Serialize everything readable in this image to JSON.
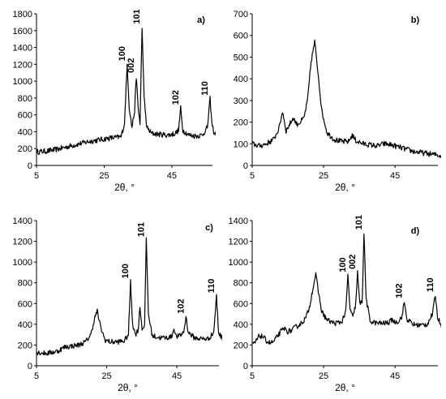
{
  "chart_data": [
    {
      "type": "line",
      "panel": "a)",
      "xlabel": "2θ, °",
      "ylabel": "",
      "xlim": [
        5,
        57
      ],
      "ylim": [
        0,
        1800
      ],
      "xticks": [
        5,
        25,
        45
      ],
      "yticks": [
        0,
        200,
        400,
        600,
        800,
        1000,
        1200,
        1400,
        1600,
        1800
      ],
      "series": [
        {
          "points": [
            [
              5,
              160
            ],
            [
              8,
              170
            ],
            [
              11,
              190
            ],
            [
              14,
              220
            ],
            [
              17,
              250
            ],
            [
              20,
              280
            ],
            [
              23,
              300
            ],
            [
              26,
              320
            ],
            [
              28,
              330
            ],
            [
              30,
              340
            ],
            [
              31,
              500
            ],
            [
              31.8,
              1200
            ],
            [
              32.4,
              700
            ],
            [
              33.2,
              450
            ],
            [
              34,
              650
            ],
            [
              34.5,
              1060
            ],
            [
              35,
              700
            ],
            [
              35.6,
              500
            ],
            [
              36.2,
              1640
            ],
            [
              36.8,
              800
            ],
            [
              37.6,
              450
            ],
            [
              39,
              380
            ],
            [
              41,
              370
            ],
            [
              44,
              360
            ],
            [
              46,
              380
            ],
            [
              47,
              420
            ],
            [
              47.6,
              680
            ],
            [
              48.2,
              420
            ],
            [
              50,
              360
            ],
            [
              52,
              350
            ],
            [
              54,
              360
            ],
            [
              55.5,
              450
            ],
            [
              56.3,
              790
            ],
            [
              56.8,
              500
            ],
            [
              57.5,
              380
            ],
            [
              59,
              370
            ],
            [
              60,
              370
            ]
          ]
        }
      ],
      "annotations": [
        {
          "text": "100",
          "x": 31.8,
          "y": 1200
        },
        {
          "text": "002",
          "x": 34.5,
          "y": 1060
        },
        {
          "text": "101",
          "x": 36.2,
          "y": 1640
        },
        {
          "text": "102",
          "x": 47.6,
          "y": 680
        },
        {
          "text": "110",
          "x": 56.3,
          "y": 790
        }
      ]
    },
    {
      "type": "line",
      "panel": "b)",
      "xlabel": "2θ, °",
      "ylabel": "",
      "xlim": [
        5,
        57
      ],
      "ylim": [
        0,
        700
      ],
      "xticks": [
        5,
        25,
        45
      ],
      "yticks": [
        0,
        100,
        200,
        300,
        400,
        500,
        600,
        700
      ],
      "series": [
        {
          "points": [
            [
              5,
              100
            ],
            [
              7,
              90
            ],
            [
              9,
              100
            ],
            [
              11,
              120
            ],
            [
              12.5,
              170
            ],
            [
              13.5,
              250
            ],
            [
              14.5,
              160
            ],
            [
              15.5,
              190
            ],
            [
              16.5,
              220
            ],
            [
              17.5,
              190
            ],
            [
              18.5,
              200
            ],
            [
              19.5,
              220
            ],
            [
              20.5,
              300
            ],
            [
              21.5,
              480
            ],
            [
              22.5,
              570
            ],
            [
              23.5,
              420
            ],
            [
              24.5,
              250
            ],
            [
              26,
              150
            ],
            [
              28,
              120
            ],
            [
              30,
              110
            ],
            [
              32,
              110
            ],
            [
              33,
              140
            ],
            [
              34,
              115
            ],
            [
              36,
              100
            ],
            [
              38,
              95
            ],
            [
              40,
              90
            ],
            [
              42,
              100
            ],
            [
              44,
              95
            ],
            [
              46,
              85
            ],
            [
              48,
              75
            ],
            [
              50,
              65
            ],
            [
              52,
              60
            ],
            [
              54,
              55
            ],
            [
              56,
              50
            ],
            [
              58,
              45
            ],
            [
              60,
              40
            ]
          ]
        }
      ],
      "annotations": []
    },
    {
      "type": "line",
      "panel": "c)",
      "xlabel": "2θ, °",
      "ylabel": "",
      "xlim": [
        5,
        57
      ],
      "ylim": [
        0,
        1400
      ],
      "xticks": [
        5,
        25,
        45
      ],
      "yticks": [
        0,
        200,
        400,
        600,
        800,
        1000,
        1200,
        1400
      ],
      "series": [
        {
          "points": [
            [
              5,
              130
            ],
            [
              8,
              120
            ],
            [
              11,
              140
            ],
            [
              13,
              180
            ],
            [
              15,
              190
            ],
            [
              17,
              200
            ],
            [
              19,
              230
            ],
            [
              20.5,
              300
            ],
            [
              21.5,
              450
            ],
            [
              22.3,
              530
            ],
            [
              23.2,
              380
            ],
            [
              24.5,
              250
            ],
            [
              26,
              230
            ],
            [
              28,
              230
            ],
            [
              30,
              240
            ],
            [
              31.2,
              300
            ],
            [
              31.8,
              810
            ],
            [
              32.4,
              400
            ],
            [
              33.2,
              300
            ],
            [
              34,
              350
            ],
            [
              34.5,
              570
            ],
            [
              35.1,
              350
            ],
            [
              35.8,
              400
            ],
            [
              36.3,
              1210
            ],
            [
              36.9,
              500
            ],
            [
              38,
              290
            ],
            [
              40,
              270
            ],
            [
              42,
              270
            ],
            [
              43.5,
              280
            ],
            [
              44.2,
              360
            ],
            [
              44.8,
              280
            ],
            [
              46,
              290
            ],
            [
              47,
              330
            ],
            [
              47.6,
              470
            ],
            [
              48.3,
              320
            ],
            [
              50,
              270
            ],
            [
              52,
              260
            ],
            [
              54,
              260
            ],
            [
              55.5,
              320
            ],
            [
              56.3,
              670
            ],
            [
              56.9,
              320
            ],
            [
              58,
              260
            ],
            [
              60,
              260
            ]
          ]
        }
      ],
      "annotations": [
        {
          "text": "100",
          "x": 31.8,
          "y": 810
        },
        {
          "text": "101",
          "x": 36.3,
          "y": 1210
        },
        {
          "text": "102",
          "x": 47.6,
          "y": 470
        },
        {
          "text": "110",
          "x": 56.3,
          "y": 670
        }
      ]
    },
    {
      "type": "line",
      "panel": "d)",
      "xlabel": "2θ, °",
      "ylabel": "",
      "xlim": [
        5,
        57
      ],
      "ylim": [
        0,
        1400
      ],
      "xticks": [
        5,
        25,
        45
      ],
      "yticks": [
        0,
        200,
        400,
        600,
        800,
        1000,
        1200,
        1400
      ],
      "series": [
        {
          "points": [
            [
              4,
              220
            ],
            [
              5,
              200
            ],
            [
              6,
              230
            ],
            [
              7,
              290
            ],
            [
              8,
              280
            ],
            [
              9,
              240
            ],
            [
              10,
              220
            ],
            [
              11,
              230
            ],
            [
              12,
              280
            ],
            [
              13,
              330
            ],
            [
              14,
              360
            ],
            [
              15,
              330
            ],
            [
              16,
              340
            ],
            [
              17,
              370
            ],
            [
              18,
              390
            ],
            [
              19,
              420
            ],
            [
              20,
              460
            ],
            [
              21,
              560
            ],
            [
              22,
              750
            ],
            [
              22.8,
              880
            ],
            [
              23.5,
              720
            ],
            [
              24.5,
              520
            ],
            [
              26,
              440
            ],
            [
              28,
              410
            ],
            [
              30,
              420
            ],
            [
              31.2,
              520
            ],
            [
              31.8,
              870
            ],
            [
              32.4,
              550
            ],
            [
              33.2,
              460
            ],
            [
              34,
              600
            ],
            [
              34.5,
              900
            ],
            [
              35.1,
              600
            ],
            [
              35.8,
              620
            ],
            [
              36.3,
              1280
            ],
            [
              36.9,
              650
            ],
            [
              38,
              430
            ],
            [
              40,
              410
            ],
            [
              42,
              410
            ],
            [
              43.5,
              420
            ],
            [
              44.2,
              450
            ],
            [
              44.8,
              420
            ],
            [
              46,
              430
            ],
            [
              47,
              480
            ],
            [
              47.6,
              620
            ],
            [
              48.3,
              450
            ],
            [
              50,
              400
            ],
            [
              52,
              390
            ],
            [
              54,
              400
            ],
            [
              55.5,
              500
            ],
            [
              56.3,
              680
            ],
            [
              56.9,
              470
            ],
            [
              58,
              390
            ],
            [
              60,
              380
            ]
          ]
        }
      ],
      "annotations": [
        {
          "text": "100",
          "x": 31.8,
          "y": 870
        },
        {
          "text": "002",
          "x": 34.5,
          "y": 900
        },
        {
          "text": "101",
          "x": 36.3,
          "y": 1280
        },
        {
          "text": "102",
          "x": 47.6,
          "y": 620
        },
        {
          "text": "110",
          "x": 56.3,
          "y": 680
        }
      ]
    }
  ]
}
